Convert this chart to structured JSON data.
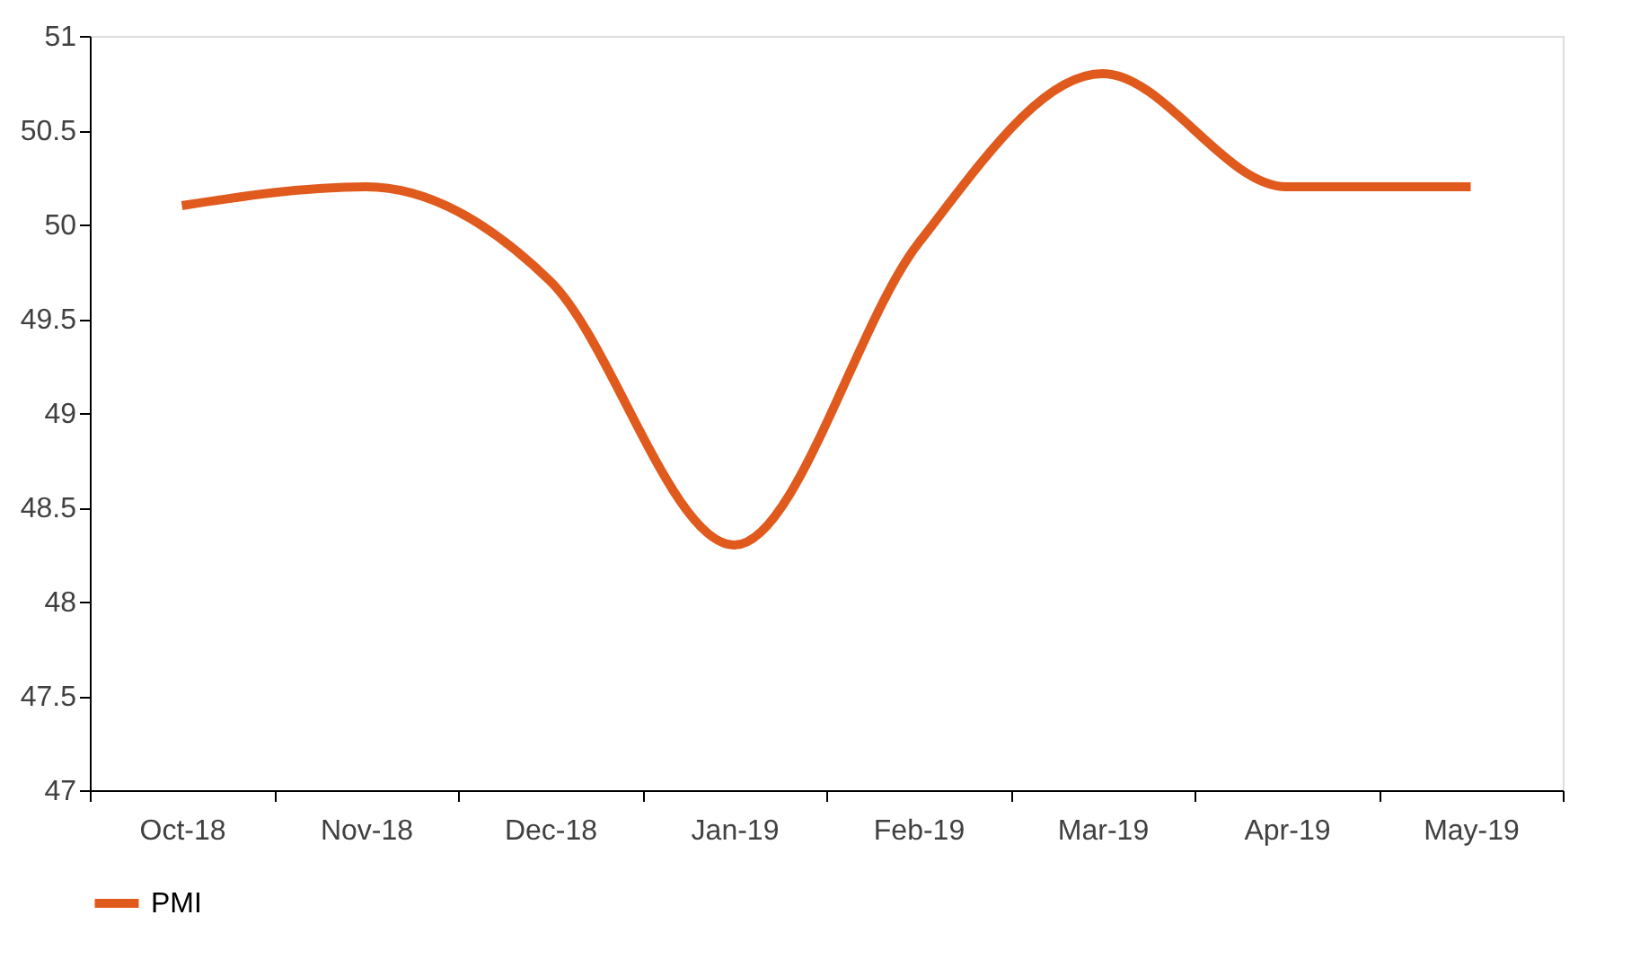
{
  "chart_data": {
    "type": "line",
    "categories": [
      "Oct-18",
      "Nov-18",
      "Dec-18",
      "Jan-19",
      "Feb-19",
      "Mar-19",
      "Apr-19",
      "May-19"
    ],
    "series": [
      {
        "name": "PMI",
        "color": "#e05a1e",
        "values": [
          50.1,
          50.2,
          49.7,
          48.3,
          49.9,
          50.8,
          50.2,
          50.2
        ]
      }
    ],
    "ylim": [
      47,
      51
    ],
    "yticks": [
      47,
      47.5,
      48,
      48.5,
      49,
      49.5,
      50,
      50.5,
      51
    ],
    "grid": false,
    "legend": "bottom",
    "marker": "none",
    "line_style": "solid"
  }
}
